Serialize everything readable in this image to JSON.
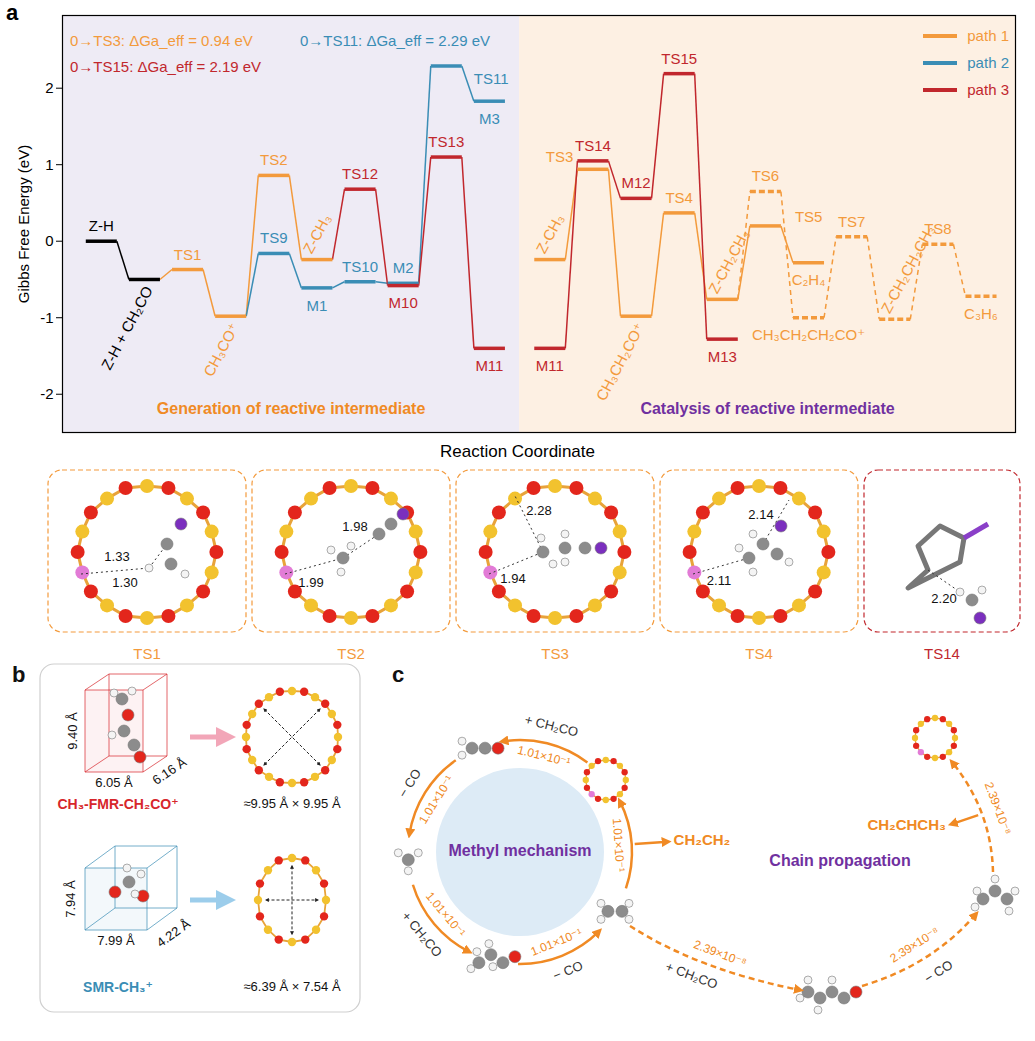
{
  "chart_data": {
    "type": "energy_profile",
    "panel": "a",
    "y_label": "Gibbs Free Energy (eV)",
    "x_label": "Reaction Coordinate",
    "xlim": [
      -0.9,
      21.2
    ],
    "ylim": [
      -2.5,
      2.95
    ],
    "yticks": [
      -2,
      -1,
      0,
      1,
      2
    ],
    "grid": false,
    "tick_labels": "y",
    "legend": "top-right",
    "color": "#000000",
    "series": [
      {
        "name": "path 1",
        "color": "#F39A3C"
      },
      {
        "name": "path 2",
        "color": "#3A8DB5"
      },
      {
        "name": "path 3",
        "color": "#C1272D"
      }
    ],
    "regions": [
      {
        "label": "Generation of reactive intermediate",
        "xlim": [
          -0.9,
          9.7
        ],
        "color": "#F08A24"
      },
      {
        "label": "Catalysis of reactive intermediate",
        "xlim": [
          9.7,
          21.2
        ],
        "color": "#7030A0"
      }
    ],
    "annotations": [
      {
        "text": "0→TS3: ΔGa_eff = 0.94 eV",
        "series": "path 1"
      },
      {
        "text": "0→TS11: ΔGa_eff = 2.29 eV",
        "series": "path 2"
      },
      {
        "text": "0→TS15: ΔGa_eff = 2.19 eV",
        "series": "path 3"
      }
    ],
    "states": [
      {
        "label": "Z-H",
        "x": 0,
        "value": 0.0,
        "series": null
      },
      {
        "label": "Z-H + CH₂CO",
        "x": 1,
        "value": -0.5,
        "series": null
      },
      {
        "label": "TS1",
        "x": 2,
        "value": -0.37,
        "series": "path 1"
      },
      {
        "label": "CH₃CO⁺",
        "x": 3,
        "value": -0.98,
        "series": "path 1"
      },
      {
        "label": "TS2",
        "x": 4,
        "value": 0.86,
        "series": "path 1"
      },
      {
        "label": "Z-CH₃",
        "x": 5,
        "value": -0.24,
        "series": "path 1"
      },
      {
        "label": "TS9",
        "x": 4,
        "value": -0.16,
        "series": "path 2"
      },
      {
        "label": "M1",
        "x": 5,
        "value": -0.61,
        "series": "path 2"
      },
      {
        "label": "TS10",
        "x": 6,
        "value": -0.53,
        "series": "path 2"
      },
      {
        "label": "M2",
        "x": 7,
        "value": -0.55,
        "series": "path 2"
      },
      {
        "label": "TS11",
        "x": 8,
        "value": 2.29,
        "series": "path 2"
      },
      {
        "label": "M3",
        "x": 9,
        "value": 1.83,
        "series": "path 2"
      },
      {
        "label": "TS12",
        "x": 6,
        "value": 0.68,
        "series": "path 3"
      },
      {
        "label": "M10",
        "x": 7,
        "value": -0.58,
        "series": "path 3"
      },
      {
        "label": "TS13",
        "x": 8,
        "value": 1.1,
        "series": "path 3"
      },
      {
        "label": "M11",
        "x": 9,
        "value": -1.4,
        "series": "path 3"
      },
      {
        "label": "Z-CH₃",
        "x": 10.4,
        "value": -0.24,
        "series": "path 1"
      },
      {
        "label": "M11",
        "x": 10.4,
        "value": -1.4,
        "series": "path 3"
      },
      {
        "label": "TS3",
        "x": 11.4,
        "value": 0.94,
        "series": "path 1"
      },
      {
        "label": "TS14",
        "x": 11.4,
        "value": 1.05,
        "series": "path 3"
      },
      {
        "label": "CH₃CH₂CO⁺",
        "x": 12.4,
        "value": -0.98,
        "series": "path 1"
      },
      {
        "label": "M12",
        "x": 12.4,
        "value": 0.56,
        "series": "path 3"
      },
      {
        "label": "TS4",
        "x": 13.4,
        "value": 0.37,
        "series": "path 1"
      },
      {
        "label": "TS15",
        "x": 13.4,
        "value": 2.19,
        "series": "path 3"
      },
      {
        "label": "Z-CH₂CH₃",
        "x": 14.4,
        "value": -0.76,
        "series": "path 1"
      },
      {
        "label": "M13",
        "x": 14.4,
        "value": -1.28,
        "series": "path 3"
      },
      {
        "label": "TS5",
        "x": 15.4,
        "value": 0.2,
        "series": "path 1"
      },
      {
        "label": "TS6",
        "x": 15.4,
        "value": 0.65,
        "series": "path 1",
        "line_style": "dashed"
      },
      {
        "label": "C₂H₄",
        "x": 16.4,
        "value": -0.28,
        "series": "path 1"
      },
      {
        "label": "CH₃CH₂CH₂CO⁺",
        "x": 16.4,
        "value": -1.0,
        "series": "path 1",
        "line_style": "dashed"
      },
      {
        "label": "TS7",
        "x": 17.4,
        "value": 0.06,
        "series": "path 1",
        "line_style": "dashed"
      },
      {
        "label": "Z-CH₂CH₂CH₃",
        "x": 18.4,
        "value": -1.02,
        "series": "path 1",
        "line_style": "dashed"
      },
      {
        "label": "TS8",
        "x": 19.4,
        "value": -0.04,
        "series": "path 1",
        "line_style": "dashed"
      },
      {
        "label": "C₃H₆",
        "x": 20.4,
        "value": -0.72,
        "series": "path 1",
        "line_style": "dashed"
      }
    ],
    "routes": [
      {
        "states": [
          0,
          1
        ]
      },
      {
        "states": [
          1,
          2,
          3,
          4,
          5
        ]
      },
      {
        "states": [
          3,
          6,
          7,
          8,
          9,
          10,
          11
        ]
      },
      {
        "states": [
          5,
          12,
          13,
          14,
          15
        ]
      },
      {
        "states": [
          16,
          18,
          20,
          22,
          24,
          26,
          28
        ]
      },
      {
        "states": [
          24,
          27,
          29,
          30,
          31,
          32,
          33
        ],
        "line_style": "dashed"
      },
      {
        "states": [
          17,
          19,
          21,
          23,
          25
        ]
      }
    ]
  },
  "structures": [
    {
      "title": "TS1",
      "series": "path 1",
      "distances": [
        "1.33",
        "1.30"
      ]
    },
    {
      "title": "TS2",
      "series": "path 1",
      "distances": [
        "1.98",
        "1.99"
      ]
    },
    {
      "title": "TS3",
      "series": "path 1",
      "distances": [
        "2.28",
        "1.94"
      ]
    },
    {
      "title": "TS4",
      "series": "path 1",
      "distances": [
        "2.14",
        "2.11"
      ]
    },
    {
      "title": "TS14",
      "series": "path 3",
      "distances": [
        "2.20"
      ]
    }
  ],
  "panel_b": {
    "letter": "b",
    "items": [
      {
        "label": "CH₃-FMR-CH₂CO⁺",
        "color": "#D7262B",
        "dimensions": [
          "9.40 Å",
          "6.05 Å",
          "6.16 Å"
        ],
        "pore": "≈9.95 Å × 9.95 Å"
      },
      {
        "label": "SMR-CH₃⁺",
        "color": "#3A8DB5",
        "dimensions": [
          "7.94 Å",
          "7.99 Å",
          "4.22 Å"
        ],
        "pore": "≈6.39 Å × 7.54 Å"
      }
    ]
  },
  "panel_c": {
    "letter": "c",
    "color": "#F08A24",
    "cycles": [
      {
        "title": "Methyl mechanism",
        "steps": [
          {
            "rate": "1.01×10⁻¹",
            "label": "+ CH₂CO"
          },
          {
            "rate": "1.01×10⁻¹",
            "label": "− CO"
          },
          {
            "rate": "1.01×10⁻¹",
            "label": "+ CH₂CO"
          },
          {
            "rate": "1.01×10⁻¹",
            "label": "− CO"
          },
          {
            "rate": "1.01×10⁻¹",
            "product": "CH₂CH₂"
          }
        ]
      },
      {
        "title": "Chain propagation",
        "line_style": "dashed",
        "steps": [
          {
            "rate": "2.39×10⁻⁸",
            "label": "+ CH₂CO"
          },
          {
            "rate": "2.39×10⁻⁸",
            "label": "− CO"
          },
          {
            "rate": "2.39×10⁻⁸",
            "product": "CH₂CHCH₃"
          }
        ]
      }
    ]
  }
}
